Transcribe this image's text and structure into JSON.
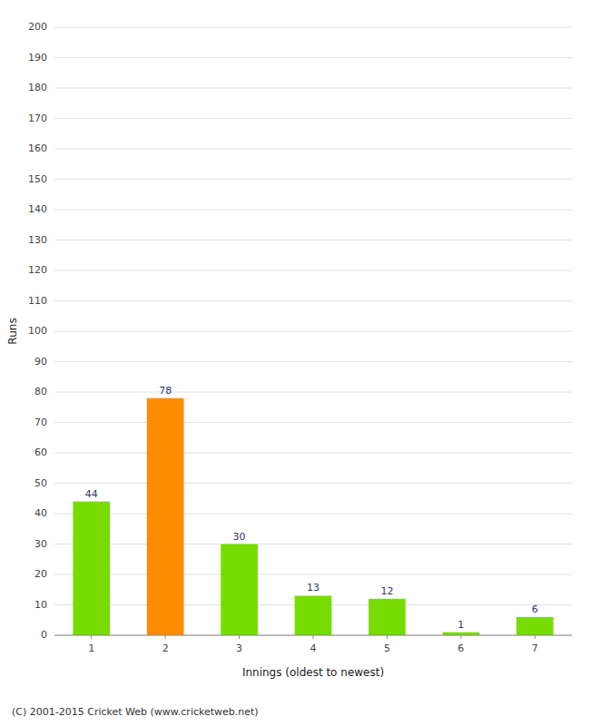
{
  "chart_data": {
    "type": "bar",
    "categories": [
      "1",
      "2",
      "3",
      "4",
      "5",
      "6",
      "7"
    ],
    "values": [
      44,
      78,
      30,
      13,
      12,
      1,
      6
    ],
    "colors": [
      "#77dd00",
      "#ff8c00",
      "#77dd00",
      "#77dd00",
      "#77dd00",
      "#77dd00",
      "#77dd00"
    ],
    "x_label": "Innings (oldest to newest)",
    "y_label": "Runs",
    "annotations": [
      "(C) 2001-2015 Cricket Web (www.cricketweb.net)"
    ],
    "ylim": [
      0,
      200
    ],
    "yticks": [
      0,
      10,
      20,
      30,
      40,
      50,
      60,
      70,
      80,
      90,
      100,
      110,
      120,
      130,
      140,
      150,
      160,
      170,
      180,
      190,
      200
    ],
    "grid": true,
    "data_labels": true
  }
}
